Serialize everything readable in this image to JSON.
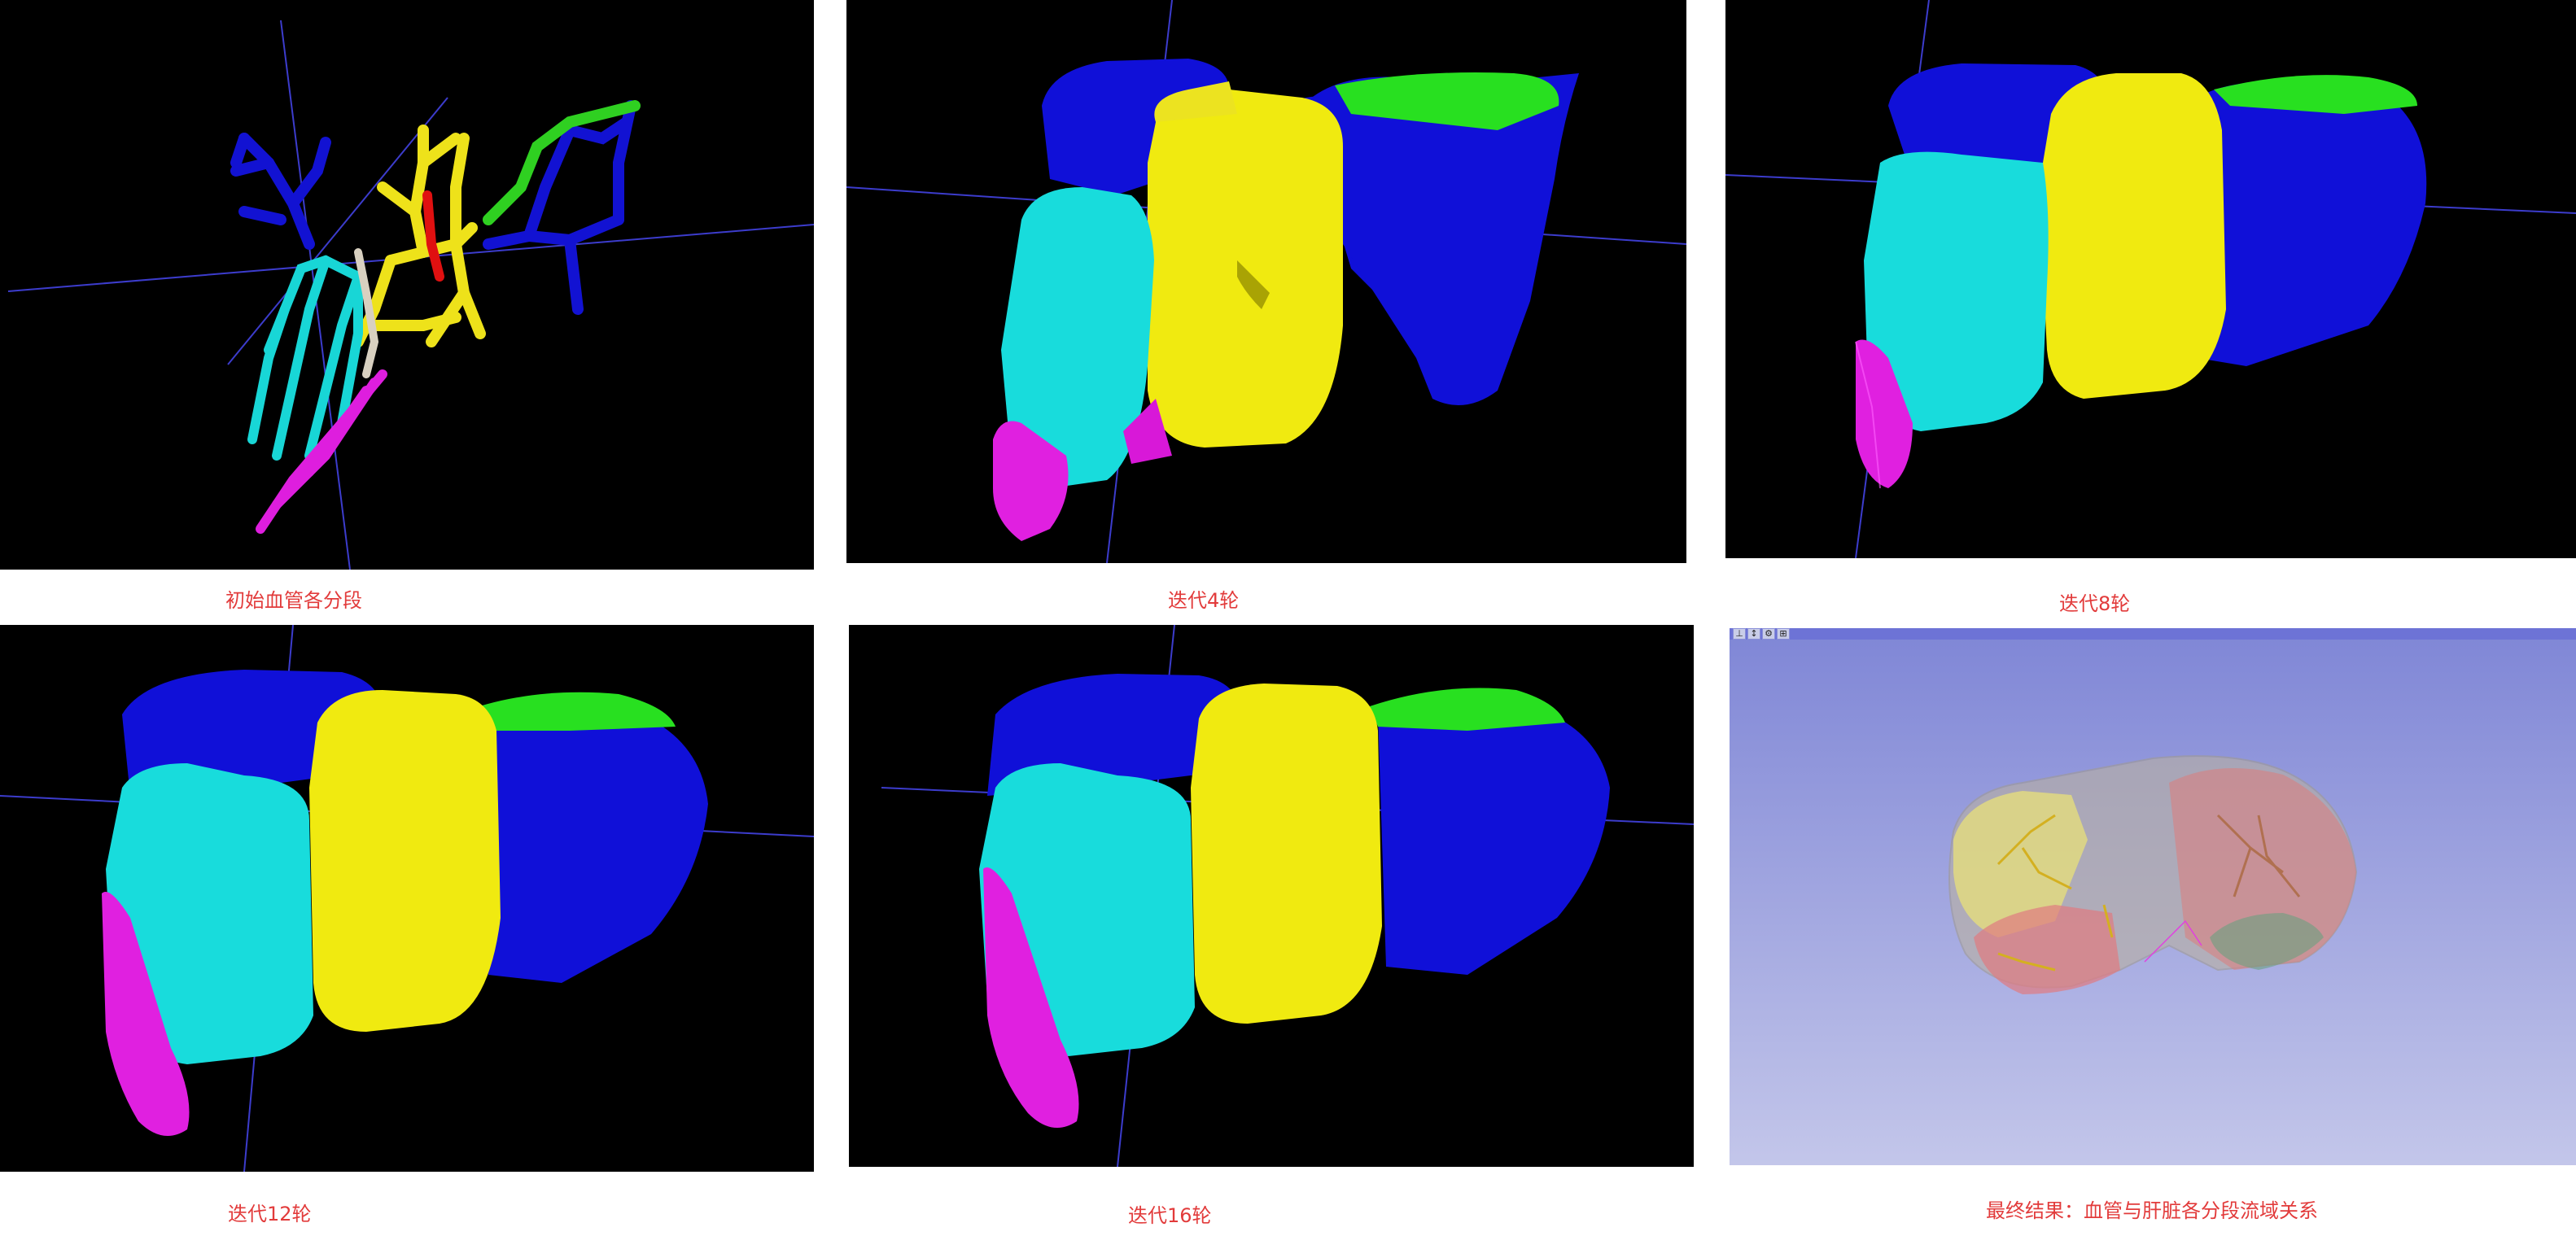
{
  "panels": [
    {
      "caption": "初始血管各分段"
    },
    {
      "caption": "迭代4轮"
    },
    {
      "caption": "迭代8轮"
    },
    {
      "caption": "迭代12轮"
    },
    {
      "caption": "迭代16轮"
    },
    {
      "caption": "最终结果：血管与肝脏各分段流域关系"
    }
  ],
  "colors": {
    "caption": "#e23b3b",
    "background": "#000000",
    "segment_blue": "#1010d8",
    "segment_yellow": "#f2ea10",
    "segment_cyan": "#18e0e0",
    "segment_magenta": "#e020e0",
    "segment_green": "#30e020",
    "segment_red": "#e01010",
    "slicer_bg_top": "#7f86d6",
    "slicer_bg_bottom": "#c3c6ea"
  },
  "viewer_toolbar": {
    "icons": [
      "pin-icon",
      "maximize-icon",
      "settings-icon",
      "layout-icon"
    ]
  }
}
